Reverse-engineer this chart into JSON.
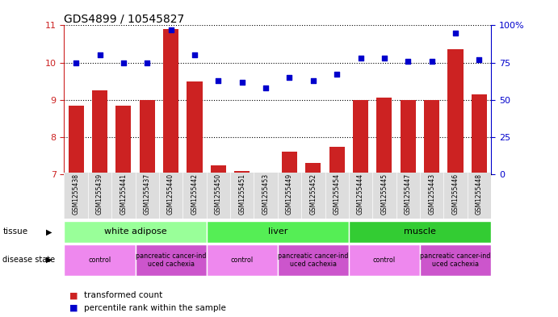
{
  "title": "GDS4899 / 10545827",
  "samples": [
    "GSM1255438",
    "GSM1255439",
    "GSM1255441",
    "GSM1255437",
    "GSM1255440",
    "GSM1255442",
    "GSM1255450",
    "GSM1255451",
    "GSM1255453",
    "GSM1255449",
    "GSM1255452",
    "GSM1255454",
    "GSM1255444",
    "GSM1255445",
    "GSM1255447",
    "GSM1255443",
    "GSM1255446",
    "GSM1255448"
  ],
  "bar_values": [
    8.85,
    9.25,
    8.85,
    9.0,
    10.9,
    9.5,
    7.25,
    7.1,
    7.05,
    7.6,
    7.3,
    7.75,
    9.0,
    9.05,
    9.0,
    9.0,
    10.35,
    9.15
  ],
  "dot_values": [
    75,
    80,
    75,
    75,
    97,
    80,
    63,
    62,
    58,
    65,
    63,
    67,
    78,
    78,
    76,
    76,
    95,
    77
  ],
  "ylim_left": [
    7,
    11
  ],
  "ylim_right": [
    0,
    100
  ],
  "yticks_left": [
    7,
    8,
    9,
    10,
    11
  ],
  "yticks_right": [
    0,
    25,
    50,
    75,
    100
  ],
  "bar_color": "#cc2222",
  "dot_color": "#0000cc",
  "tissue_groups": [
    {
      "label": "white adipose",
      "start": 0,
      "end": 6,
      "color": "#99ff99"
    },
    {
      "label": "liver",
      "start": 6,
      "end": 12,
      "color": "#55ee55"
    },
    {
      "label": "muscle",
      "start": 12,
      "end": 18,
      "color": "#33cc33"
    }
  ],
  "disease_groups": [
    {
      "label": "control",
      "start": 0,
      "end": 3,
      "color": "#ee88ee"
    },
    {
      "label": "pancreatic cancer-ind\nuced cachexia",
      "start": 3,
      "end": 6,
      "color": "#cc55cc"
    },
    {
      "label": "control",
      "start": 6,
      "end": 9,
      "color": "#ee88ee"
    },
    {
      "label": "pancreatic cancer-ind\nuced cachexia",
      "start": 9,
      "end": 12,
      "color": "#cc55cc"
    },
    {
      "label": "control",
      "start": 12,
      "end": 15,
      "color": "#ee88ee"
    },
    {
      "label": "pancreatic cancer-ind\nuced cachexia",
      "start": 15,
      "end": 18,
      "color": "#cc55cc"
    }
  ]
}
